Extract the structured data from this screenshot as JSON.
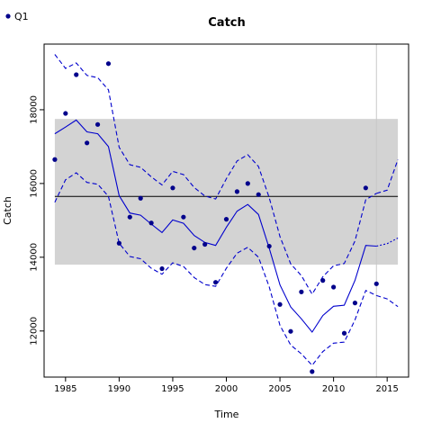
{
  "chart_data": {
    "type": "line",
    "title": "Catch",
    "xlabel": "Time",
    "ylabel": "Catch",
    "xlim": [
      1983,
      2017
    ],
    "ylim": [
      10750,
      19780
    ],
    "x_ticks": [
      1985,
      1990,
      1995,
      2000,
      2005,
      2010,
      2015
    ],
    "y_ticks": [
      12000,
      14000,
      16000,
      18000
    ],
    "legend": {
      "entries": [
        "Q1"
      ],
      "placement": "top-left",
      "color": "#00008B"
    },
    "band": {
      "x": [
        1984,
        2016
      ],
      "y": [
        13800,
        17750
      ],
      "color": "#D3D3D3"
    },
    "hline": {
      "y": 15650,
      "color": "#000000"
    },
    "vline": {
      "x": 2014,
      "color": "#C8C8C8"
    },
    "observations": {
      "name": "Q1",
      "color": "#00008B",
      "x": [
        1984,
        1985,
        1986,
        1987,
        1988,
        1989,
        1990,
        1991,
        1992,
        1993,
        1994,
        1995,
        1996,
        1997,
        1998,
        1999,
        2000,
        2001,
        2002,
        2003,
        2004,
        2005,
        2006,
        2007,
        2008,
        2009,
        2010,
        2011,
        2012,
        2013,
        2014
      ],
      "y": [
        16650,
        17900,
        18950,
        17100,
        17600,
        19250,
        14380,
        15090,
        15600,
        14930,
        13690,
        15880,
        15090,
        14250,
        14350,
        13320,
        15030,
        15780,
        16000,
        15700,
        14300,
        12720,
        11990,
        13060,
        10900,
        13370,
        13190,
        11940,
        12760,
        15880,
        13280
      ]
    },
    "series": [
      {
        "style": "solid",
        "color": "#0000CD",
        "x": [
          1984,
          1985,
          1986,
          1987,
          1988,
          1989,
          1990,
          1991,
          1992,
          1993,
          1994,
          1995,
          1996,
          1997,
          1998,
          1999,
          2000,
          2001,
          2002,
          2003,
          2004,
          2005,
          2006,
          2007,
          2008,
          2009,
          2010,
          2011,
          2012,
          2013,
          2014
        ],
        "y": [
          17350,
          17530,
          17720,
          17400,
          17350,
          17000,
          15670,
          15200,
          15140,
          14900,
          14670,
          15010,
          14920,
          14590,
          14400,
          14320,
          14810,
          15250,
          15430,
          15160,
          14250,
          13250,
          12650,
          12330,
          11970,
          12420,
          12670,
          12700,
          13370,
          14320,
          14300
        ]
      },
      {
        "style": "dashed",
        "color": "#0000CD",
        "x": [
          1984,
          1985,
          1986,
          1987,
          1988,
          1989,
          1990,
          1991,
          1992,
          1993,
          1994,
          1995,
          1996,
          1997,
          1998,
          1999,
          2000,
          2001,
          2002,
          2003,
          2004,
          2005,
          2006,
          2007,
          2008,
          2009,
          2010,
          2011,
          2012,
          2013,
          2014
        ],
        "y": [
          19500,
          19120,
          19270,
          18930,
          18870,
          18540,
          16980,
          16510,
          16440,
          16180,
          15960,
          16330,
          16240,
          15890,
          15660,
          15580,
          16130,
          16610,
          16780,
          16460,
          15620,
          14560,
          13820,
          13500,
          13000,
          13470,
          13770,
          13830,
          14440,
          15560,
          15730
        ]
      },
      {
        "style": "dashed",
        "color": "#0000CD",
        "x": [
          1984,
          1985,
          1986,
          1987,
          1988,
          1989,
          1990,
          1991,
          1992,
          1993,
          1994,
          1995,
          1996,
          1997,
          1998,
          1999,
          2000,
          2001,
          2002,
          2003,
          2004,
          2005,
          2006,
          2007,
          2008,
          2009,
          2010,
          2011,
          2012,
          2013,
          2014
        ],
        "y": [
          15490,
          16100,
          16290,
          16030,
          15980,
          15650,
          14380,
          14020,
          13960,
          13700,
          13540,
          13850,
          13750,
          13450,
          13260,
          13210,
          13700,
          14110,
          14270,
          14000,
          13200,
          12150,
          11620,
          11380,
          11070,
          11440,
          11670,
          11700,
          12300,
          13100,
          12960
        ]
      },
      {
        "style": "dotted",
        "color": "#0000CD",
        "x": [
          2014,
          2015,
          2016
        ],
        "y": [
          14300,
          14370,
          14520
        ]
      },
      {
        "style": "dashed",
        "color": "#0000CD",
        "x": [
          2014,
          2015,
          2016
        ],
        "y": [
          15730,
          15820,
          16650
        ]
      },
      {
        "style": "dashed",
        "color": "#0000CD",
        "x": [
          2014,
          2015,
          2016
        ],
        "y": [
          12960,
          12870,
          12660
        ]
      }
    ]
  }
}
